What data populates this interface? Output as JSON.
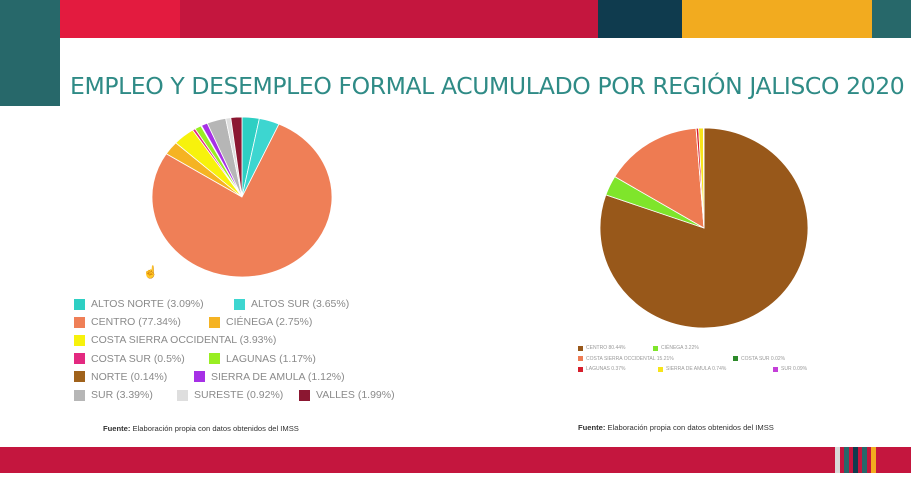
{
  "slide": {
    "title": "EMPLEO Y DESEMPLEO FORMAL ACUMULADO POR REGIÓN JALISCO 2020",
    "source_left_label": "Fuente:",
    "source_left_text": "Elaboración propia con datos obtenidos del IMSS",
    "source_right_label": "Fuente:",
    "source_right_text": "Elaboración propia con datos obtenidos del IMSS"
  },
  "colors": {
    "top_band": [
      "#e31b3f",
      "#c4163e",
      "#c4163e",
      "#c4163e",
      "#0f3b4e",
      "#f2ab1f",
      "#27686a"
    ],
    "bottom_band": "#c4163e",
    "bottom_stripes": [
      "#d9d9d9",
      "#27686a",
      "#0f3b4e",
      "#27686a",
      "#f2ab1f"
    ],
    "title": "#2f8b86"
  },
  "chart_data": [
    {
      "type": "pie",
      "title": "",
      "legend_position": "bottom",
      "slices": [
        {
          "label": "ALTOS NORTE (3.09%)",
          "value": 3.09,
          "color": "#2ecfc3"
        },
        {
          "label": "ALTOS SUR (3.65%)",
          "value": 3.65,
          "color": "#3dd6d0"
        },
        {
          "label": "CENTRO (77.34%)",
          "value": 77.34,
          "color": "#ef7f57"
        },
        {
          "label": "CIÉNEGA (2.75%)",
          "value": 2.75,
          "color": "#f5b323"
        },
        {
          "label": "COSTA SIERRA OCCIDENTAL (3.93%)",
          "value": 3.93,
          "color": "#f7f20c"
        },
        {
          "label": "COSTA SUR (0.5%)",
          "value": 0.5,
          "color": "#e32980"
        },
        {
          "label": "LAGUNAS (1.17%)",
          "value": 1.17,
          "color": "#99ee22"
        },
        {
          "label": "NORTE (0.14%)",
          "value": 0.14,
          "color": "#a0621b"
        },
        {
          "label": "SIERRA DE AMULA (1.12%)",
          "value": 1.12,
          "color": "#a630e6"
        },
        {
          "label": "SUR (3.39%)",
          "value": 3.39,
          "color": "#b6b6b6"
        },
        {
          "label": "SURESTE (0.92%)",
          "value": 0.92,
          "color": "#dedede"
        },
        {
          "label": "VALLES (1.99%)",
          "value": 1.99,
          "color": "#8b1731"
        }
      ]
    },
    {
      "type": "pie",
      "title": "",
      "legend_position": "bottom",
      "slices": [
        {
          "label": "CENTRO  80.44%",
          "value": 80.44,
          "color": "#98581a"
        },
        {
          "label": "CIÉNEGA  3.22%",
          "value": 3.22,
          "color": "#7fe52b"
        },
        {
          "label": "COSTA SIERRA OCCIDENTAL  15.21%",
          "value": 15.21,
          "color": "#ee7b52"
        },
        {
          "label": "COSTA SUR  0.02%",
          "value": 0.02,
          "color": "#2d8a2a"
        },
        {
          "label": "LAGUNAS  0.37%",
          "value": 0.37,
          "color": "#d61e2c"
        },
        {
          "label": "SIERRA DE AMULA  0.74%",
          "value": 0.74,
          "color": "#f7e41a"
        },
        {
          "label": "SUR  0.09%",
          "value": 0.09,
          "color": "#c43fd8"
        }
      ]
    }
  ]
}
